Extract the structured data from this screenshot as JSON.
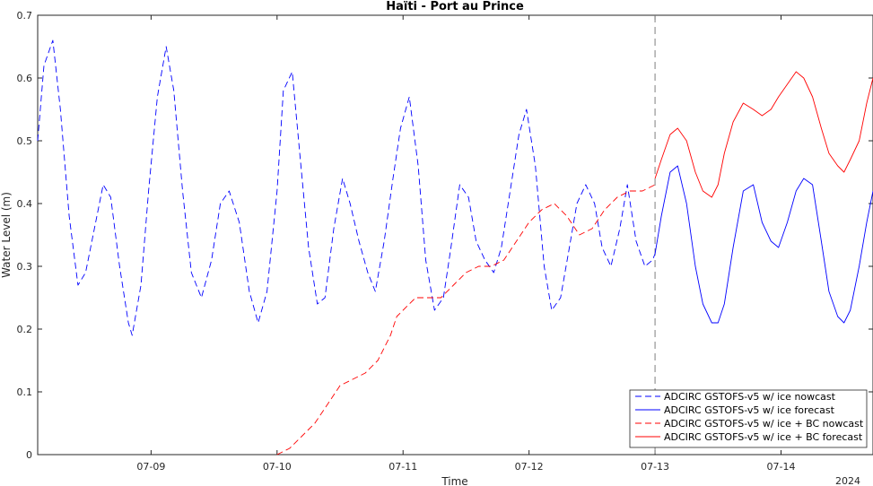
{
  "chart_data": {
    "type": "line",
    "title": "Haïti - Port au Prince",
    "xlabel": "Time",
    "ylabel": "Water Level (m)",
    "year_label": "2024",
    "xlim": [
      8.1,
      14.73
    ],
    "ylim": [
      0,
      0.7
    ],
    "x_ticks": [
      9,
      10,
      11,
      12,
      13,
      14
    ],
    "x_tick_labels": [
      "07-09",
      "07-10",
      "07-11",
      "07-12",
      "07-13",
      "07-14"
    ],
    "y_ticks": [
      0,
      0.1,
      0.2,
      0.3,
      0.4,
      0.5,
      0.6,
      0.7
    ],
    "y_tick_labels": [
      "0",
      "0.1",
      "0.2",
      "0.3",
      "0.4",
      "0.5",
      "0.6",
      "0.7"
    ],
    "nowcast_divider_x": 13,
    "legend_position": "bottom-right",
    "series": [
      {
        "name": "ADCIRC GSTOFS-v5 w/ ice nowcast",
        "color": "#0000ff",
        "dash": "dashed",
        "x": [
          8.1,
          8.15,
          8.22,
          8.28,
          8.35,
          8.42,
          8.48,
          8.55,
          8.62,
          8.68,
          8.75,
          8.82,
          8.85,
          8.92,
          8.98,
          9.05,
          9.12,
          9.18,
          9.25,
          9.32,
          9.4,
          9.48,
          9.55,
          9.62,
          9.7,
          9.78,
          9.85,
          9.92,
          10.0,
          10.05,
          10.12,
          10.18,
          10.25,
          10.32,
          10.38,
          10.45,
          10.52,
          10.58,
          10.65,
          10.72,
          10.78,
          10.85,
          10.92,
          10.98,
          11.05,
          11.12,
          11.18,
          11.25,
          11.32,
          11.38,
          11.45,
          11.52,
          11.58,
          11.65,
          11.72,
          11.78,
          11.85,
          11.92,
          11.98,
          12.05,
          12.12,
          12.18,
          12.25,
          12.32,
          12.38,
          12.45,
          12.52,
          12.58,
          12.65,
          12.72,
          12.78,
          12.85,
          12.92,
          12.98,
          13.0
        ],
        "y": [
          0.5,
          0.62,
          0.66,
          0.55,
          0.38,
          0.27,
          0.29,
          0.36,
          0.43,
          0.41,
          0.3,
          0.21,
          0.19,
          0.27,
          0.42,
          0.57,
          0.65,
          0.58,
          0.42,
          0.29,
          0.25,
          0.31,
          0.4,
          0.42,
          0.37,
          0.26,
          0.21,
          0.26,
          0.42,
          0.58,
          0.61,
          0.48,
          0.33,
          0.24,
          0.25,
          0.36,
          0.44,
          0.4,
          0.34,
          0.29,
          0.26,
          0.34,
          0.44,
          0.52,
          0.57,
          0.46,
          0.31,
          0.23,
          0.25,
          0.33,
          0.43,
          0.41,
          0.34,
          0.31,
          0.29,
          0.33,
          0.42,
          0.51,
          0.55,
          0.46,
          0.3,
          0.23,
          0.25,
          0.33,
          0.4,
          0.43,
          0.4,
          0.33,
          0.3,
          0.36,
          0.43,
          0.34,
          0.3,
          0.31,
          0.32
        ]
      },
      {
        "name": "ADCIRC GSTOFS-v5 w/ ice forecast",
        "color": "#0000ff",
        "dash": "solid",
        "x": [
          13.0,
          13.05,
          13.12,
          13.18,
          13.25,
          13.32,
          13.38,
          13.45,
          13.5,
          13.55,
          13.62,
          13.7,
          13.78,
          13.85,
          13.92,
          13.98,
          14.05,
          14.12,
          14.18,
          14.25,
          14.32,
          14.38,
          14.45,
          14.5,
          14.55,
          14.62,
          14.68,
          14.73
        ],
        "y": [
          0.32,
          0.38,
          0.45,
          0.46,
          0.4,
          0.3,
          0.24,
          0.21,
          0.21,
          0.24,
          0.33,
          0.42,
          0.43,
          0.37,
          0.34,
          0.33,
          0.37,
          0.42,
          0.44,
          0.43,
          0.34,
          0.26,
          0.22,
          0.21,
          0.23,
          0.3,
          0.37,
          0.42
        ]
      },
      {
        "name": "ADCIRC GSTOFS-v5 w/ ice + BC nowcast",
        "color": "#ff0000",
        "dash": "dashed",
        "x": [
          10.0,
          10.1,
          10.2,
          10.3,
          10.4,
          10.5,
          10.6,
          10.7,
          10.8,
          10.9,
          10.95,
          11.0,
          11.05,
          11.1,
          11.2,
          11.3,
          11.4,
          11.5,
          11.6,
          11.7,
          11.8,
          11.9,
          12.0,
          12.1,
          12.2,
          12.3,
          12.4,
          12.5,
          12.6,
          12.7,
          12.8,
          12.9,
          13.0
        ],
        "y": [
          0.0,
          0.01,
          0.03,
          0.05,
          0.08,
          0.11,
          0.12,
          0.13,
          0.15,
          0.19,
          0.22,
          0.23,
          0.24,
          0.25,
          0.25,
          0.25,
          0.27,
          0.29,
          0.3,
          0.3,
          0.31,
          0.34,
          0.37,
          0.39,
          0.4,
          0.38,
          0.35,
          0.36,
          0.39,
          0.41,
          0.42,
          0.42,
          0.43
        ]
      },
      {
        "name": "ADCIRC GSTOFS-v5 w/ ice + BC forecast",
        "color": "#ff0000",
        "dash": "solid",
        "x": [
          13.0,
          13.05,
          13.12,
          13.18,
          13.25,
          13.32,
          13.38,
          13.45,
          13.5,
          13.55,
          13.62,
          13.7,
          13.78,
          13.85,
          13.92,
          13.98,
          14.05,
          14.12,
          14.18,
          14.25,
          14.32,
          14.38,
          14.45,
          14.5,
          14.55,
          14.62,
          14.68,
          14.73
        ],
        "y": [
          0.44,
          0.47,
          0.51,
          0.52,
          0.5,
          0.45,
          0.42,
          0.41,
          0.43,
          0.48,
          0.53,
          0.56,
          0.55,
          0.54,
          0.55,
          0.57,
          0.59,
          0.61,
          0.6,
          0.57,
          0.52,
          0.48,
          0.46,
          0.45,
          0.47,
          0.5,
          0.56,
          0.6
        ]
      }
    ]
  }
}
